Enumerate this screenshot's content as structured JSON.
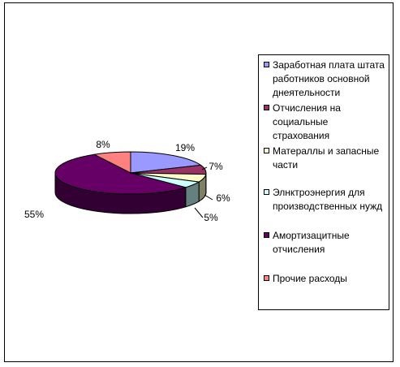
{
  "chart_data": {
    "type": "pie",
    "title": "",
    "slices": [
      {
        "label": "Заработная плата штата работников основной днеятельности",
        "value": 19,
        "display": "19%",
        "color": "#9999FF"
      },
      {
        "label": "Отчисления на социальные страхования",
        "value": 7,
        "display": "7%",
        "color": "#993366"
      },
      {
        "label": "Матераллы и запасные части",
        "value": 6,
        "display": "6%",
        "color": "#FFFFCC"
      },
      {
        "label": "Элнктроэнергия для производственных нужд",
        "value": 5,
        "display": "5%",
        "color": "#CCFFFF"
      },
      {
        "label": "Амортизацитные отчисления",
        "value": 55,
        "display": "55%",
        "color": "#660066"
      },
      {
        "label": "Прочие расходы",
        "value": 8,
        "display": "8%",
        "color": "#FF8080"
      }
    ],
    "legend_position": "right"
  }
}
